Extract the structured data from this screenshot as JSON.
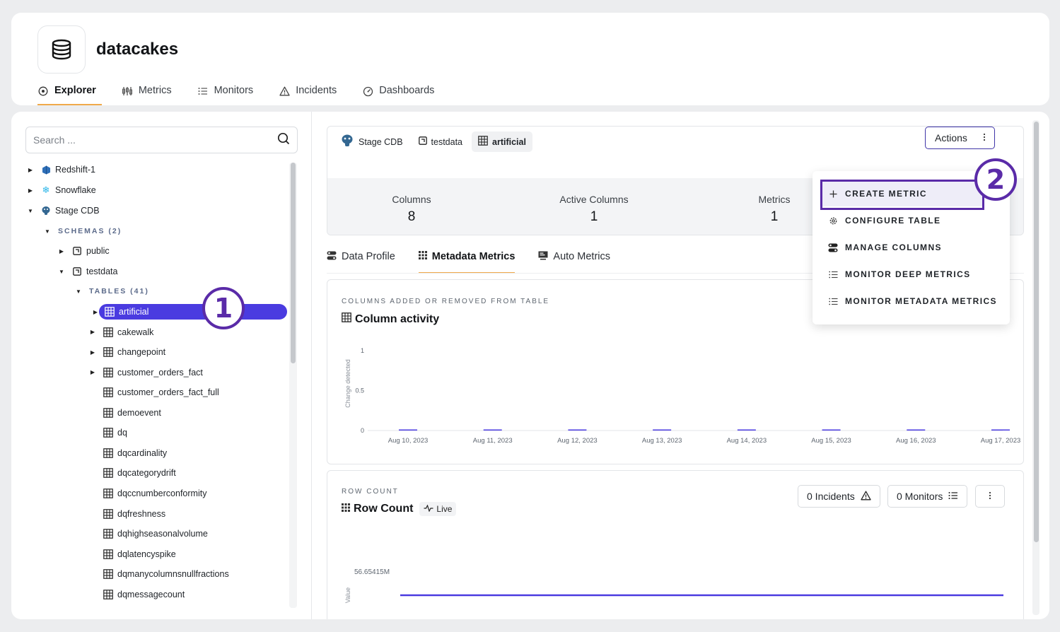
{
  "app": {
    "title": "datacakes"
  },
  "nav": [
    {
      "label": "Explorer",
      "icon": "compass-icon",
      "active": true
    },
    {
      "label": "Metrics",
      "icon": "metrics-icon"
    },
    {
      "label": "Monitors",
      "icon": "list-icon"
    },
    {
      "label": "Incidents",
      "icon": "warning-icon"
    },
    {
      "label": "Dashboards",
      "icon": "gauge-icon"
    }
  ],
  "search": {
    "placeholder": "Search ...",
    "value": ""
  },
  "tree": {
    "sources": [
      "Redshift-1",
      "Snowflake",
      "Stage CDB"
    ],
    "schemas_label": "SCHEMAS (2)",
    "schemas": [
      "public",
      "testdata"
    ],
    "tables_label": "TABLES (41)",
    "tables": [
      "artificial",
      "cakewalk",
      "changepoint",
      "customer_orders_fact",
      "customer_orders_fact_full",
      "demoevent",
      "dq",
      "dqcardinality",
      "dqcategorydrift",
      "dqccnumberconformity",
      "dqfreshness",
      "dqhighseasonalvolume",
      "dqlatencyspike",
      "dqmanycolumnsnullfractions",
      "dqmessagecount"
    ]
  },
  "annotations": {
    "one": "1",
    "two": "2"
  },
  "breadcrumb": {
    "source": "Stage CDB",
    "schema": "testdata",
    "table": "artificial"
  },
  "actions": {
    "label": "Actions"
  },
  "stats": {
    "columns_label": "Columns",
    "columns_value": "8",
    "active_label": "Active Columns",
    "active_value": "1",
    "metrics_label": "Metrics",
    "metrics_value": "1"
  },
  "tabs": [
    {
      "label": "Data Profile",
      "icon": "toggle-icon"
    },
    {
      "label": "Metadata Metrics",
      "icon": "grid-icon",
      "active": true
    },
    {
      "label": "Auto Metrics",
      "icon": "monitor-icon"
    }
  ],
  "column_activity": {
    "kicker": "COLUMNS ADDED OR REMOVED FROM TABLE",
    "title": "Column activity"
  },
  "row_count": {
    "kicker": "ROW COUNT",
    "title": "Row Count",
    "live_label": "Live",
    "incidents_label": "0 Incidents",
    "monitors_label": "0 Monitors"
  },
  "chart_data": [
    {
      "type": "bar",
      "title": "Column activity",
      "ylabel": "Change detected",
      "xlabel": "",
      "categories": [
        "Aug 10, 2023",
        "Aug 11, 2023",
        "Aug 12, 2023",
        "Aug 13, 2023",
        "Aug 14, 2023",
        "Aug 15, 2023",
        "Aug 16, 2023",
        "Aug 17, 2023"
      ],
      "values": [
        0,
        0,
        0,
        0,
        0,
        0,
        0,
        0
      ],
      "ylim": [
        0,
        1
      ],
      "yticks": [
        "1",
        "0.5",
        "0"
      ],
      "color": "#4a3be0"
    },
    {
      "type": "line",
      "title": "Row Count",
      "ylabel": "Value",
      "ytick_label": "56.65415M",
      "values": [
        56654150,
        56654150
      ],
      "color": "#4a3be0"
    }
  ],
  "dropdown": [
    {
      "label": "CREATE METRIC",
      "icon": "plus-icon"
    },
    {
      "label": "CONFIGURE TABLE",
      "icon": "gear-icon"
    },
    {
      "label": "MANAGE COLUMNS",
      "icon": "toggle-icon"
    },
    {
      "label": "MONITOR DEEP METRICS",
      "icon": "list-icon"
    },
    {
      "label": "MONITOR METADATA METRICS",
      "icon": "list-icon"
    }
  ],
  "colors": {
    "accent": "#4a3be0",
    "tab_underline": "#f0a94a",
    "annotation": "#5a2ba8"
  }
}
